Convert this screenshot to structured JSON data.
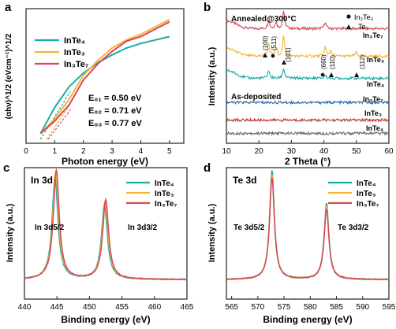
{
  "figure": {
    "panels": [
      {
        "letter": "a",
        "xlabel": "Photon energy (eV)",
        "ylabel": "(αhν)^1/2 (eVcm⁻¹)^1/2",
        "legend": [
          "InTe₄",
          "InTe₃",
          "In₃Te₇"
        ],
        "annotations": [
          "E₀₁ = 0.50 eV",
          "E₀₂ = 0.71 eV",
          "E₀₃ = 0.77 eV"
        ]
      },
      {
        "letter": "b",
        "xlabel": "2 Theta (°)",
        "ylabel": "Intensity (a.u.)",
        "groups": [
          "Annealed@300°C",
          "As-deposited"
        ],
        "legend": [
          "In₂Te₃",
          "Te"
        ],
        "peak_labels": [
          "(100)",
          "(511)",
          "(101)",
          "(660)",
          "(110)",
          "(112)"
        ],
        "trace_labels": [
          "In₃Te₇",
          "InTe₃",
          "InTe₄",
          "In₃Te₇",
          "InTe₃",
          "InTe₄"
        ]
      },
      {
        "letter": "c",
        "title": "In 3d",
        "xlabel": "Binding energy (eV)",
        "ylabel": "Intensity (a.u.)",
        "legend": [
          "InTe₄",
          "InTe₃",
          "In₃Te₇"
        ],
        "peak_labels": [
          "In 3d5/2",
          "In 3d3/2"
        ]
      },
      {
        "letter": "d",
        "title": "Te 3d",
        "xlabel": "Binding energy (eV)",
        "ylabel": "Intensity (a.u.)",
        "legend": [
          "InTe₄",
          "InTe₃",
          "In₃Te₇"
        ],
        "peak_labels": [
          "Te 3d5/2",
          "Te 3d3/2"
        ]
      }
    ]
  },
  "colors": {
    "InTe4": "#1aada8",
    "InTe3": "#f5b437",
    "In3Te7": "#d24a5c",
    "asdep_In3Te7": "#2b6cb0",
    "asdep_InTe3": "#c0392b",
    "asdep_InTe4": "#666666"
  },
  "chart_data": [
    {
      "type": "line",
      "panel": "a",
      "xlabel": "Photon energy (eV)",
      "ylabel": "(αhν)^1/2 (eVcm⁻¹)^1/2",
      "xlim": [
        0,
        5.5
      ],
      "xticks": [
        0,
        1,
        2,
        3,
        4,
        5
      ],
      "series": [
        {
          "name": "InTe₄",
          "x": [
            0.5,
            1.0,
            1.5,
            2.0,
            2.5,
            3.0,
            3.5,
            4.0,
            5.0
          ],
          "y": [
            0.05,
            0.28,
            0.46,
            0.58,
            0.67,
            0.74,
            0.8,
            0.84,
            0.9
          ]
        },
        {
          "name": "InTe₃",
          "x": [
            0.5,
            1.0,
            1.5,
            2.0,
            2.5,
            3.0,
            3.5,
            4.0,
            5.0
          ],
          "y": [
            0.05,
            0.18,
            0.35,
            0.56,
            0.69,
            0.8,
            0.87,
            0.92,
            1.05
          ]
        },
        {
          "name": "In₃Te₇",
          "x": [
            0.5,
            1.0,
            1.5,
            2.0,
            2.5,
            3.0,
            3.5,
            4.0,
            5.0
          ],
          "y": [
            0.05,
            0.16,
            0.3,
            0.52,
            0.66,
            0.77,
            0.86,
            0.9,
            1.03
          ]
        }
      ],
      "extrapolation_intercepts": [
        0.5,
        0.71,
        0.77
      ]
    },
    {
      "type": "line",
      "panel": "b",
      "xlabel": "2 Theta (°)",
      "ylabel": "Intensity (a.u.)",
      "xlim": [
        10,
        60
      ],
      "xticks": [
        10,
        20,
        30,
        40,
        50,
        60
      ],
      "series": [
        {
          "name": "In₃Te₇",
          "baseline": 5.2,
          "peaks": [
            [
              23,
              0.4
            ],
            [
              25.3,
              0.3
            ],
            [
              27.6,
              0.8
            ],
            [
              40.4,
              0.3
            ]
          ]
        },
        {
          "name": "InTe₃",
          "baseline": 3.95,
          "peaks": [
            [
              23,
              0.6
            ],
            [
              25.3,
              0.4
            ],
            [
              27.6,
              0.9
            ],
            [
              40.4,
              0.4
            ],
            [
              42,
              0.25
            ],
            [
              50,
              0.2
            ]
          ]
        },
        {
          "name": "InTe₄",
          "baseline": 2.95,
          "peaks": [
            [
              23,
              0.35
            ],
            [
              27.6,
              0.45
            ],
            [
              40.4,
              0.15
            ]
          ]
        },
        {
          "name": "In₃Te₇",
          "baseline": 1.85,
          "peaks": []
        },
        {
          "name": "InTe₃",
          "baseline": 1.05,
          "peaks": []
        },
        {
          "name": "InTe₄",
          "baseline": 0.45,
          "peaks": []
        }
      ]
    },
    {
      "type": "line",
      "panel": "c",
      "xlabel": "Binding energy (eV)",
      "ylabel": "Intensity (a.u.)",
      "xlim": [
        440,
        465
      ],
      "xticks": [
        440,
        445,
        450,
        455,
        460,
        465
      ],
      "series": [
        {
          "name": "InTe₄",
          "peaks": [
            [
              444.7,
              0.93
            ],
            [
              452.3,
              0.68
            ]
          ]
        },
        {
          "name": "InTe₃",
          "peaks": [
            [
              444.8,
              0.97
            ],
            [
              452.4,
              0.71
            ]
          ]
        },
        {
          "name": "In₃Te₇",
          "peaks": [
            [
              444.9,
              1.0
            ],
            [
              452.5,
              0.73
            ]
          ]
        }
      ]
    },
    {
      "type": "line",
      "panel": "d",
      "xlabel": "Binding energy (eV)",
      "ylabel": "Intensity (a.u.)",
      "xlim": [
        564,
        595
      ],
      "xticks": [
        565,
        570,
        575,
        580,
        585,
        590,
        595
      ],
      "series": [
        {
          "name": "InTe₄",
          "peaks": [
            [
              572.7,
              1.0
            ],
            [
              583.1,
              0.7
            ]
          ]
        },
        {
          "name": "InTe₃",
          "peaks": [
            [
              572.7,
              0.96
            ],
            [
              583.1,
              0.67
            ]
          ]
        },
        {
          "name": "In₃Te₇",
          "peaks": [
            [
              572.7,
              0.93
            ],
            [
              583.1,
              0.64
            ]
          ]
        }
      ]
    }
  ]
}
